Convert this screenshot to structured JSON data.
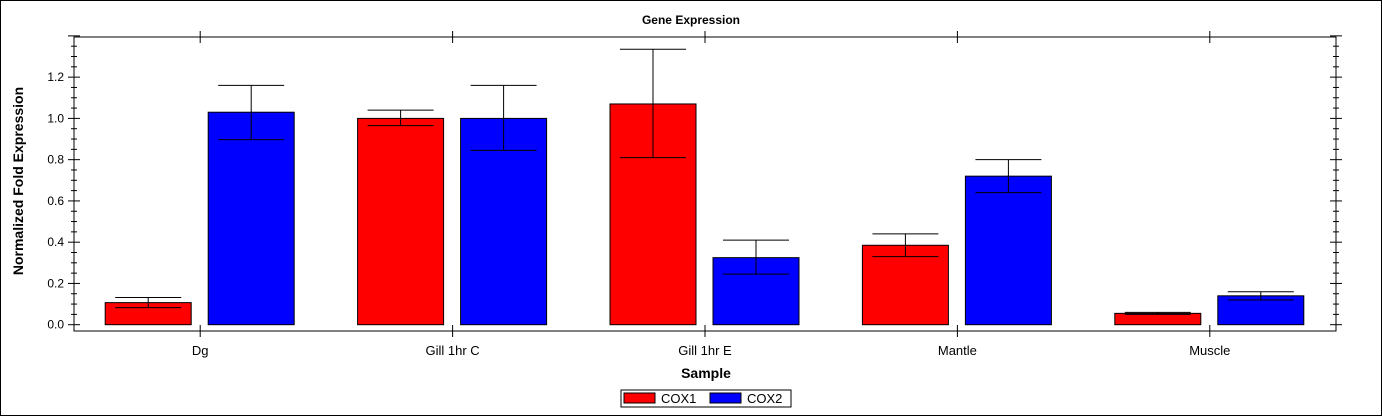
{
  "chart_data": {
    "type": "bar",
    "title": "Gene Expression",
    "xlabel": "Sample",
    "ylabel": "Normalized Fold Expression",
    "ylim": [
      0,
      1.4
    ],
    "yticks": [
      "0.0",
      "0.2",
      "0.4",
      "0.6",
      "0.8",
      "1.0",
      "1.2"
    ],
    "categories": [
      "Dg",
      "Gill 1hr C",
      "Gill 1hr E",
      "Mantle",
      "Muscle"
    ],
    "series": [
      {
        "name": "COX1",
        "color": "#ff0000",
        "values": [
          0.107,
          1.0,
          1.07,
          0.385,
          0.055
        ],
        "err_low": [
          0.083,
          0.965,
          0.81,
          0.33,
          0.05
        ],
        "err_high": [
          0.132,
          1.04,
          1.335,
          0.44,
          0.06
        ]
      },
      {
        "name": "COX2",
        "color": "#0000ff",
        "values": [
          1.03,
          1.0,
          0.325,
          0.72,
          0.14
        ],
        "err_low": [
          0.897,
          0.845,
          0.245,
          0.64,
          0.12
        ],
        "err_high": [
          1.16,
          1.16,
          0.41,
          0.8,
          0.16
        ]
      }
    ],
    "legend": "bottom-center",
    "grid": false
  }
}
